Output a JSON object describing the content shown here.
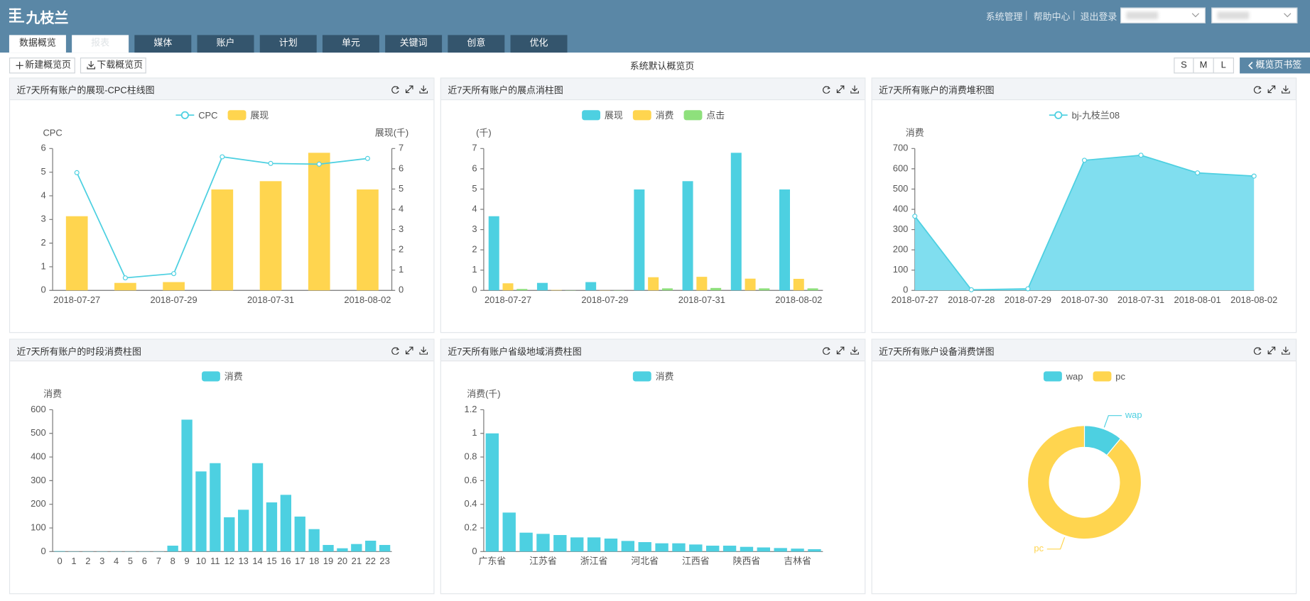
{
  "header": {
    "logo": "九枝兰",
    "links": [
      "系统管理",
      "帮助中心",
      "退出登录"
    ]
  },
  "tabs": [
    "数据概览",
    "报表",
    "媒体",
    "账户",
    "计划",
    "单元",
    "关键词",
    "创意",
    "优化"
  ],
  "toolbar": {
    "new": "新建概览页",
    "download": "下载概览页",
    "title": "系统默认概览页",
    "sizes": [
      "S",
      "M",
      "L"
    ],
    "bookmark": "概览页书签"
  },
  "chart_data": [
    {
      "type": "combo",
      "title": "近7天所有账户的展现-CPC柱线图",
      "categories": [
        "2018-07-27",
        null,
        "2018-07-29",
        null,
        "2018-07-31",
        null,
        "2018-08-02"
      ],
      "series": [
        {
          "name": "CPC",
          "type": "line",
          "color": "#4dd0e1",
          "values": [
            4.98,
            0.53,
            0.71,
            5.65,
            5.37,
            5.34,
            5.58
          ]
        },
        {
          "name": "展现",
          "type": "bar",
          "color": "#ffd54f",
          "axis": "y2",
          "values": [
            3.66,
            0.37,
            0.41,
            4.98,
            5.39,
            6.79,
            4.98
          ]
        }
      ],
      "ylabel": "CPC",
      "y2label": "展现(千)",
      "ylim": [
        0,
        6
      ],
      "yticks": [
        0,
        1,
        2,
        3,
        4,
        5,
        6
      ],
      "y2lim": [
        0,
        7
      ],
      "y2ticks": [
        0,
        1,
        2,
        3,
        4,
        5,
        6,
        7
      ],
      "grid": false
    },
    {
      "type": "bar",
      "title": "近7天所有账户的展点消柱图",
      "categories": [
        "2018-07-27",
        null,
        "2018-07-29",
        null,
        "2018-07-31",
        null,
        "2018-08-02"
      ],
      "series": [
        {
          "name": "展现",
          "color": "#4dd0e1",
          "values": [
            3.66,
            0.37,
            0.41,
            4.98,
            5.39,
            6.79,
            4.98
          ]
        },
        {
          "name": "消费",
          "color": "#ffd54f",
          "values": [
            0.35,
            0.02,
            0.01,
            0.65,
            0.67,
            0.58,
            0.57
          ]
        },
        {
          "name": "点击",
          "color": "#8ee07c",
          "values": [
            0.07,
            0.01,
            0.01,
            0.1,
            0.12,
            0.1,
            0.1
          ]
        }
      ],
      "ylabel": "(千)",
      "ylim": [
        0,
        7
      ],
      "yticks": [
        0,
        1,
        2,
        3,
        4,
        5,
        6,
        7
      ],
      "grid": false
    },
    {
      "type": "area",
      "title": "近7天所有账户的消费堆积图",
      "categories": [
        "2018-07-27",
        "2018-07-28",
        "2018-07-29",
        "2018-07-30",
        "2018-07-31",
        "2018-08-01",
        "2018-08-02"
      ],
      "series": [
        {
          "name": "bj-九枝兰08",
          "color": "#4dd0e1",
          "fill": "#80deef",
          "values": [
            366,
            3,
            8,
            642,
            667,
            580,
            564
          ]
        }
      ],
      "ylabel": "消费",
      "ylim": [
        0,
        700
      ],
      "yticks": [
        0,
        100,
        200,
        300,
        400,
        500,
        600,
        700
      ],
      "grid": false
    },
    {
      "type": "bar",
      "title": "近7天所有账户的时段消费柱图",
      "categories": [
        "0",
        "1",
        "2",
        "3",
        "4",
        "5",
        "6",
        "7",
        "8",
        "9",
        "10",
        "11",
        "12",
        "13",
        "14",
        "15",
        "16",
        "17",
        "18",
        "19",
        "20",
        "21",
        "22",
        "23"
      ],
      "series": [
        {
          "name": "消费",
          "color": "#4dd0e1",
          "values": [
            2,
            1,
            1,
            1,
            1,
            1,
            1,
            1,
            25,
            558,
            339,
            374,
            145,
            177,
            374,
            208,
            240,
            148,
            95,
            28,
            14,
            32,
            46,
            28
          ]
        }
      ],
      "ylabel": "消费",
      "ylim": [
        0,
        600
      ],
      "yticks": [
        0,
        100,
        200,
        300,
        400,
        500,
        600
      ],
      "grid": false
    },
    {
      "type": "bar",
      "title": "近7天所有账户省级地域消费柱图",
      "categories": [
        "广东省",
        null,
        null,
        "江苏省",
        null,
        null,
        "浙江省",
        null,
        null,
        "河北省",
        null,
        null,
        "江西省",
        null,
        null,
        "陕西省",
        null,
        null,
        "吉林省",
        null
      ],
      "series": [
        {
          "name": "消费",
          "color": "#4dd0e1",
          "values": [
            1.0,
            0.33,
            0.16,
            0.15,
            0.14,
            0.12,
            0.12,
            0.11,
            0.09,
            0.08,
            0.07,
            0.07,
            0.06,
            0.05,
            0.05,
            0.04,
            0.035,
            0.03,
            0.025,
            0.02
          ]
        }
      ],
      "ylabel": "消费(千)",
      "ylim": [
        0,
        1.2
      ],
      "yticks": [
        0,
        0.2,
        0.4,
        0.6,
        0.8,
        1,
        1.2
      ],
      "grid": false
    },
    {
      "type": "pie",
      "title": "近7天所有账户设备消费饼图",
      "categories": [
        "wap",
        "pc"
      ],
      "values": [
        11,
        89
      ],
      "colors": [
        "#4dd0e1",
        "#ffd54f"
      ],
      "donut": true
    }
  ]
}
